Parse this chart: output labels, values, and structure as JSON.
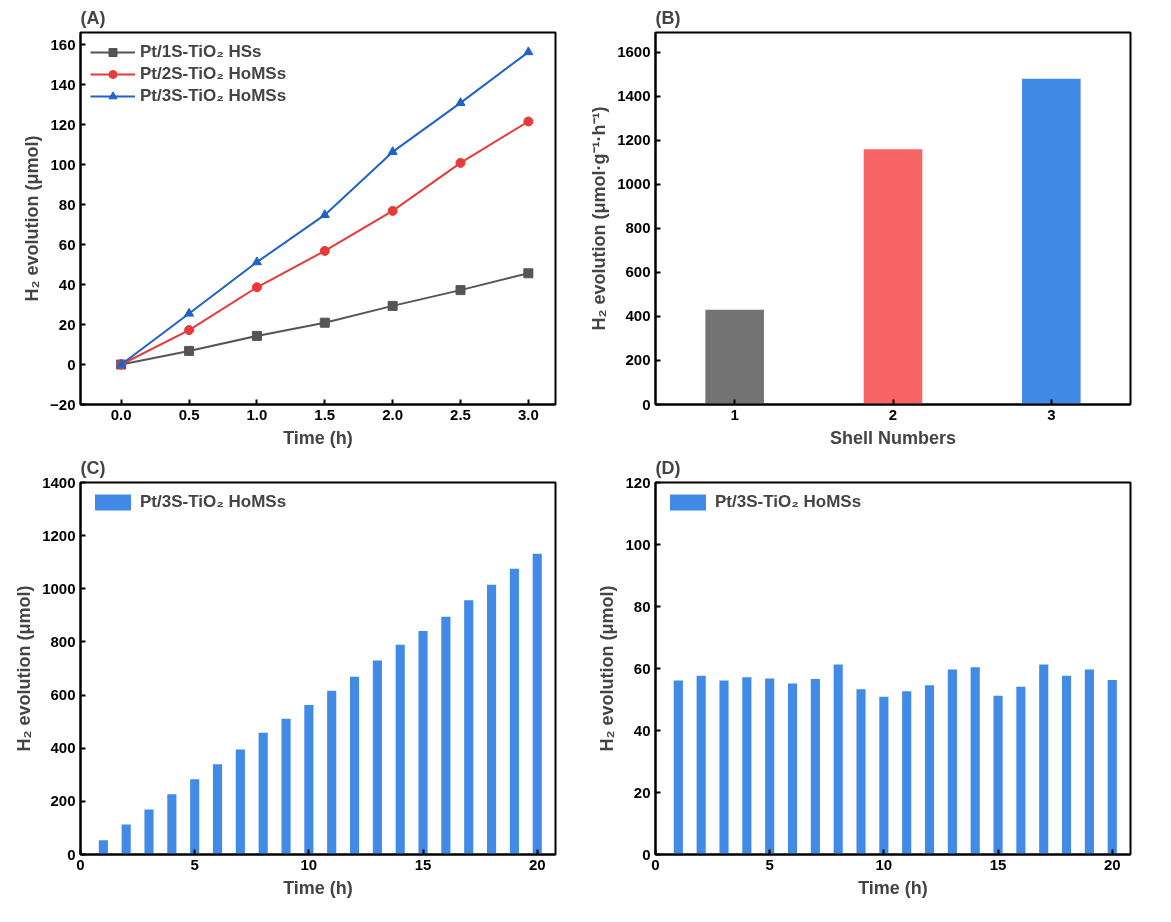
{
  "chart_data": [
    {
      "type": "line",
      "title": "(A)",
      "xlabel": "Time (h)",
      "ylabel": "H₂ evolution (μmol)",
      "x": [
        0,
        0.5,
        1,
        1.5,
        2,
        2.5,
        3
      ],
      "xlim": [
        -0.3,
        3.2
      ],
      "xticks": [
        {
          "value": 0,
          "label": "0.0"
        },
        {
          "value": 0.5,
          "label": "0.5"
        },
        {
          "value": 1,
          "label": "1.0"
        },
        {
          "value": 1.5,
          "label": "1.5"
        },
        {
          "value": 2,
          "label": "2.0"
        },
        {
          "value": 2.5,
          "label": "2.5"
        },
        {
          "value": 3,
          "label": "3.0"
        }
      ],
      "ylim": [
        -20,
        166
      ],
      "yticks": [
        -20,
        0,
        20,
        40,
        60,
        80,
        100,
        120,
        140,
        160
      ],
      "grid": false,
      "legend": "top left",
      "line_style": "solid",
      "series": [
        {
          "name": "Pt/1S-TiO₂ HSs",
          "color": "#555555",
          "marker": "square",
          "values": [
            0,
            6.8,
            14.3,
            20.9,
            29.3,
            37.2,
            45.6
          ]
        },
        {
          "name": "Pt/2S-TiO₂ HoMSs",
          "color": "#e8393b",
          "marker": "circle",
          "values": [
            0,
            17.2,
            38.6,
            56.8,
            76.8,
            100.8,
            121.5
          ]
        },
        {
          "name": "Pt/3S-TiO₂ HoMSs",
          "color": "#1f63c6",
          "marker": "triangle",
          "values": [
            0,
            25.5,
            51.2,
            74.8,
            106.3,
            130.8,
            156.2
          ]
        }
      ]
    },
    {
      "type": "bar",
      "title": "(B)",
      "xlabel": "Shell Numbers",
      "ylabel": "H₂ evolution (μmol·g⁻¹·h⁻¹)",
      "categories": [
        "1",
        "2",
        "3"
      ],
      "values": [
        430,
        1160,
        1480
      ],
      "colors": [
        "#737373",
        "#f86566",
        "#418ae6"
      ],
      "ylim": [
        0,
        1690
      ],
      "yticks": [
        0,
        200,
        400,
        600,
        800,
        1000,
        1200,
        1400,
        1600
      ],
      "grid": false,
      "legend": false
    },
    {
      "type": "bar",
      "title": "(C)",
      "xlabel": "Time (h)",
      "ylabel": "H₂ evolution (μmol)",
      "x": [
        1,
        2,
        3,
        4,
        5,
        6,
        7,
        8,
        9,
        10,
        11,
        12,
        13,
        14,
        15,
        16,
        17,
        18,
        19,
        20
      ],
      "xlim": [
        0,
        20.8
      ],
      "xticks": [
        0,
        5,
        10,
        15,
        20
      ],
      "ylim": [
        0,
        1400
      ],
      "yticks": [
        0,
        200,
        400,
        600,
        800,
        1000,
        1200,
        1400
      ],
      "grid": false,
      "legend": "top left",
      "series": [
        {
          "name": "Pt/3S-TiO₂ HoMSs",
          "color": "#418ae6",
          "values": [
            54,
            113,
            169,
            227,
            283,
            340,
            395,
            458,
            511,
            563,
            616,
            669,
            730,
            789,
            841,
            895,
            957,
            1015,
            1075,
            1132
          ]
        }
      ]
    },
    {
      "type": "bar",
      "title": "(D)",
      "xlabel": "Time (h)",
      "ylabel": "H₂ evolution (μmol)",
      "x": [
        1,
        2,
        3,
        4,
        5,
        6,
        7,
        8,
        9,
        10,
        11,
        12,
        13,
        14,
        15,
        16,
        17,
        18,
        19,
        20
      ],
      "xlim": [
        0,
        20.8
      ],
      "xticks": [
        0,
        5,
        10,
        15,
        20
      ],
      "ylim": [
        0,
        120
      ],
      "yticks": [
        0,
        20,
        40,
        60,
        80,
        100,
        120
      ],
      "grid": false,
      "legend": "top left",
      "series": [
        {
          "name": "Pt/3S-TiO₂ HoMSs",
          "color": "#418ae6",
          "values": [
            56.1,
            57.7,
            56.1,
            57.2,
            56.8,
            55.2,
            56.6,
            61.3,
            53.3,
            50.9,
            52.7,
            54.6,
            59.7,
            60.4,
            51.2,
            54.1,
            61.3,
            57.7,
            59.7,
            56.3
          ]
        }
      ]
    }
  ]
}
